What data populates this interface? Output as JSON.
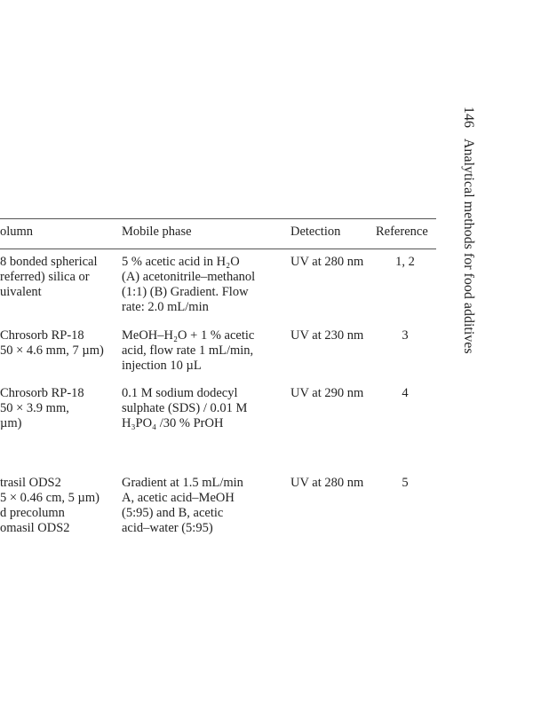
{
  "running_header": {
    "page_number": "146",
    "title": "Analytical methods for food additives"
  },
  "table": {
    "headers": [
      "olumn",
      "Mobile phase",
      "Detection",
      "Reference"
    ],
    "rows": [
      {
        "column": [
          "8 bonded spherical",
          "referred) silica or",
          "uivalent"
        ],
        "mobile_phase": [
          "5 % acetic acid in H₂O",
          "(A) acetonitrile–methanol",
          "(1:1) (B) Gradient. Flow",
          "rate: 2.0 mL/min"
        ],
        "detection": "UV at 280 nm",
        "reference": "1, 2"
      },
      {
        "column": [
          "Chrosorb RP-18",
          "50 × 4.6 mm, 7 µm)"
        ],
        "mobile_phase": [
          "MeOH–H₂O + 1 % acetic",
          "acid, flow rate 1 mL/min,",
          "injection 10 µL"
        ],
        "detection": "UV at 230 nm",
        "reference": "3"
      },
      {
        "column": [
          "Chrosorb RP-18",
          "50 × 3.9 mm,",
          " µm)"
        ],
        "mobile_phase": [
          "0.1 M sodium dodecyl",
          "sulphate (SDS) / 0.01 M",
          "H₃PO₄ /30 % PrOH"
        ],
        "detection": "UV at 290 nm",
        "reference": "4"
      },
      {
        "column": [
          "trasil ODS2",
          "5 × 0.46 cm, 5 µm)",
          "d precolumn",
          "omasil ODS2"
        ],
        "mobile_phase": [
          "Gradient at 1.5 mL/min",
          "A, acetic acid–MeOH",
          "(5:95) and B, acetic",
          "acid–water (5:95)"
        ],
        "detection": "UV at 280 nm",
        "reference": "5"
      }
    ]
  }
}
